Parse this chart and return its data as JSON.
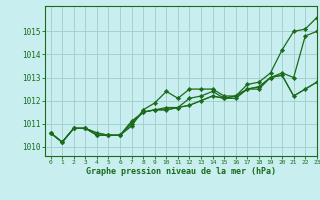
{
  "title": "Graphe pression niveau de la mer (hPa)",
  "bg_color": "#c8eef0",
  "grid_color": "#a0cccc",
  "line_color": "#1a6b1a",
  "marker_color": "#1a6b1a",
  "xlim": [
    -0.5,
    23
  ],
  "ylim": [
    1009.6,
    1016.1
  ],
  "yticks": [
    1010,
    1011,
    1012,
    1013,
    1014,
    1015
  ],
  "xticks": [
    0,
    1,
    2,
    3,
    4,
    5,
    6,
    7,
    8,
    9,
    10,
    11,
    12,
    13,
    14,
    15,
    16,
    17,
    18,
    19,
    20,
    21,
    22,
    23
  ],
  "series": [
    [
      1010.6,
      1010.2,
      1010.8,
      1010.8,
      1010.5,
      1010.5,
      1010.5,
      1010.9,
      1011.6,
      1011.9,
      1012.4,
      1012.1,
      1012.5,
      1012.5,
      1012.5,
      1012.2,
      1012.2,
      1012.7,
      1012.8,
      1013.2,
      1014.2,
      1015.0,
      1015.1,
      1015.6
    ],
    [
      1010.6,
      1010.2,
      1010.8,
      1010.8,
      1010.5,
      1010.5,
      1010.5,
      1011.0,
      1011.5,
      1011.6,
      1011.7,
      1011.7,
      1012.1,
      1012.2,
      1012.4,
      1012.1,
      1012.1,
      1012.5,
      1012.5,
      1013.0,
      1013.2,
      1013.0,
      1014.8,
      1015.0
    ],
    [
      1010.6,
      1010.2,
      1010.8,
      1010.8,
      1010.6,
      1010.5,
      1010.5,
      1011.1,
      1011.5,
      1011.6,
      1011.6,
      1011.7,
      1011.8,
      1012.0,
      1012.2,
      1012.1,
      1012.2,
      1012.5,
      1012.6,
      1013.0,
      1013.1,
      1012.2,
      1012.5,
      1012.8
    ],
    [
      1010.6,
      1010.2,
      1010.8,
      1010.8,
      1010.6,
      1010.5,
      1010.5,
      1011.1,
      1011.5,
      1011.6,
      1011.6,
      1011.7,
      1011.8,
      1012.0,
      1012.2,
      1012.1,
      1012.2,
      1012.5,
      1012.6,
      1013.0,
      1013.1,
      1012.2,
      1012.5,
      1012.8
    ]
  ]
}
